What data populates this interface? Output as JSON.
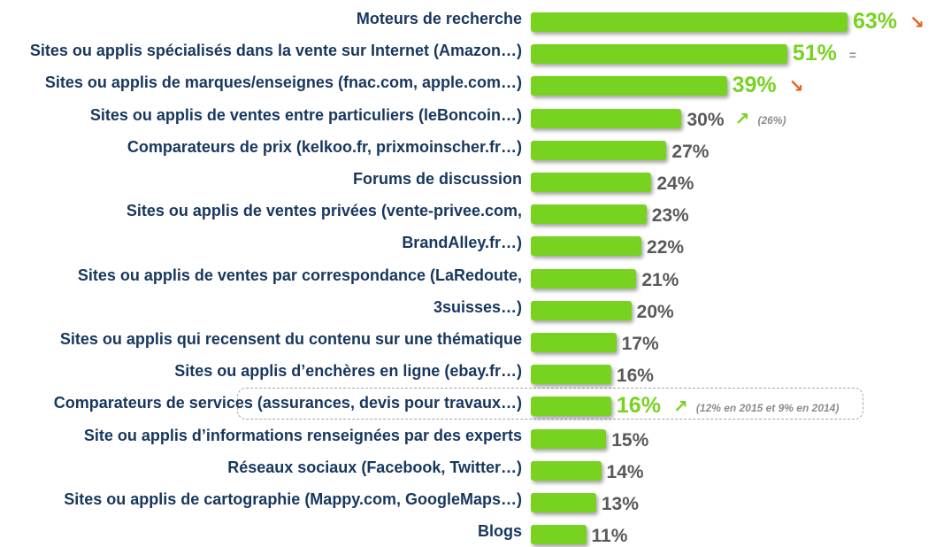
{
  "chart_data": {
    "type": "bar",
    "orientation": "horizontal",
    "title": "",
    "xlabel": "",
    "ylabel": "",
    "xlim": [
      0,
      63
    ],
    "unit": "%",
    "categories": [
      "Moteurs de recherche",
      "Sites ou applis spécialisés dans la vente sur Internet (Amazon…)",
      "Sites ou applis de marques/enseignes (fnac.com, apple.com…)",
      "Sites ou applis de ventes entre particuliers (leBoncoin…)",
      "Comparateurs de prix (kelkoo.fr, prixmoinscher.fr…)",
      "Forums de discussion",
      "Sites ou applis de ventes privées (vente-privee.com,",
      "BrandAlley.fr…)",
      "Sites ou applis de ventes par correspondance (LaRedoute,",
      "3suisses…)",
      "Sites ou applis qui recensent du contenu sur une thématique",
      "Sites ou applis d’enchères en ligne (ebay.fr…)",
      "Comparateurs de services (assurances, devis pour travaux…)",
      "Site ou applis d’informations renseignées par des experts",
      "Réseaux sociaux (Facebook, Twitter…)",
      "Sites ou applis de cartographie (Mappy.com, GoogleMaps…)",
      "Blogs"
    ],
    "values": [
      63,
      51,
      39,
      30,
      27,
      24,
      23,
      22,
      21,
      20,
      17,
      16,
      16,
      15,
      14,
      13,
      11
    ],
    "value_labels": [
      "63%",
      "51%",
      "39%",
      "30%",
      "27%",
      "24%",
      "23%",
      "22%",
      "21%",
      "20%",
      "17%",
      "16%",
      "16%",
      "15%",
      "14%",
      "13%",
      "11%"
    ],
    "highlighted": [
      0,
      1,
      2,
      12
    ],
    "highlight_box_index": 12,
    "trends": [
      {
        "index": 0,
        "symbol": "↘",
        "kind": "down",
        "note": ""
      },
      {
        "index": 1,
        "symbol": "=",
        "kind": "eq",
        "note": ""
      },
      {
        "index": 2,
        "symbol": "↘",
        "kind": "down",
        "note": ""
      },
      {
        "index": 3,
        "symbol": "↗",
        "kind": "up",
        "note": "(26%)"
      },
      {
        "index": 12,
        "symbol": "↗",
        "kind": "up",
        "note": "(12% en 2015 et 9% en 2014)"
      }
    ]
  },
  "colors": {
    "bar": "#77d320",
    "highlight_value": "#77d320",
    "value": "#595959",
    "label": "#17375e",
    "trend_down": "#e8601c",
    "trend_up": "#77d320",
    "trend_eq": "#8c8c8c"
  }
}
